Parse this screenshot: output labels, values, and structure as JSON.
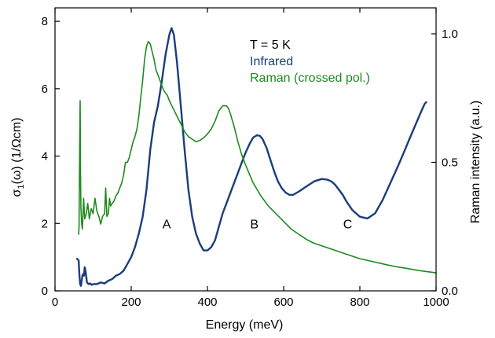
{
  "chart_data": {
    "type": "line",
    "title": "",
    "xlabel": "Energy (meV)",
    "ylabel_left_prefix": "σ",
    "ylabel_left_sub": "1",
    "ylabel_left_suffix": "(ω) (1/Ωcm)",
    "ylabel_right": "Raman intensity (a.u.)",
    "xlim": [
      0,
      1000
    ],
    "ylim_left": [
      0,
      8.4
    ],
    "ylim_right": [
      0,
      1.0
    ],
    "x_ticks": [
      0,
      200,
      400,
      600,
      800,
      1000
    ],
    "x_tick_labels": [
      "0",
      "200",
      "400",
      "600",
      "800",
      "1000"
    ],
    "y_left_ticks": [
      0,
      2,
      4,
      6,
      8
    ],
    "y_left_tick_labels": [
      "0",
      "2",
      "4",
      "6",
      "8"
    ],
    "y_right_ticks": [
      0,
      0.5,
      1.0
    ],
    "y_right_tick_labels": [
      "0.0",
      "0.5",
      "1.0"
    ],
    "grid": false,
    "legend": {
      "placement": "top-right",
      "header": "T = 5 K",
      "entries": [
        "Infrared",
        "Raman (crossed pol.)"
      ]
    },
    "annotations": [
      {
        "text": "A",
        "x": 293,
        "y": 2.0
      },
      {
        "text": "B",
        "x": 523,
        "y": 2.0
      },
      {
        "text": "C",
        "x": 768,
        "y": 2.0
      }
    ],
    "series": [
      {
        "name": "Infrared",
        "axis": "left",
        "color": "#1b3d7a",
        "x": [
          58,
          62,
          64,
          66,
          68,
          70,
          72,
          74,
          76,
          78,
          80,
          84,
          88,
          92,
          96,
          100,
          110,
          120,
          130,
          140,
          150,
          160,
          170,
          180,
          190,
          200,
          210,
          220,
          230,
          240,
          250,
          260,
          270,
          280,
          290,
          300,
          306,
          312,
          320,
          330,
          340,
          350,
          360,
          370,
          380,
          390,
          400,
          410,
          420,
          430,
          440,
          450,
          460,
          470,
          480,
          490,
          500,
          510,
          520,
          530,
          538,
          545,
          555,
          565,
          575,
          585,
          595,
          605,
          615,
          625,
          640,
          660,
          680,
          700,
          715,
          725,
          735,
          745,
          755,
          765,
          780,
          800,
          820,
          840,
          860,
          880,
          900,
          915,
          930,
          945,
          960,
          970,
          974
        ],
        "y": [
          0.95,
          0.9,
          0.5,
          0.2,
          0.15,
          0.3,
          0.45,
          0.5,
          0.45,
          0.7,
          0.6,
          0.25,
          0.2,
          0.22,
          0.18,
          0.2,
          0.2,
          0.25,
          0.22,
          0.3,
          0.35,
          0.45,
          0.5,
          0.6,
          0.8,
          1.0,
          1.3,
          1.7,
          2.2,
          3.0,
          4.2,
          5.0,
          5.5,
          6.2,
          7.0,
          7.6,
          7.8,
          7.6,
          6.8,
          5.5,
          4.2,
          3.0,
          2.2,
          1.7,
          1.4,
          1.2,
          1.2,
          1.3,
          1.5,
          1.9,
          2.3,
          2.6,
          2.9,
          3.2,
          3.5,
          3.8,
          4.1,
          4.35,
          4.55,
          4.62,
          4.6,
          4.5,
          4.25,
          3.9,
          3.55,
          3.25,
          3.05,
          2.92,
          2.85,
          2.85,
          2.95,
          3.1,
          3.25,
          3.32,
          3.3,
          3.25,
          3.15,
          3.0,
          2.85,
          2.65,
          2.4,
          2.2,
          2.15,
          2.3,
          2.7,
          3.2,
          3.7,
          4.1,
          4.5,
          4.9,
          5.3,
          5.55,
          5.6
        ]
      },
      {
        "name": "Raman (crossed pol.)",
        "axis": "right",
        "color": "#1f8a1f",
        "x": [
          62,
          63,
          64,
          65,
          66,
          67,
          68,
          70,
          72,
          75,
          78,
          82,
          86,
          90,
          95,
          100,
          105,
          110,
          115,
          120,
          125,
          130,
          133,
          136,
          140,
          143,
          146,
          150,
          155,
          160,
          165,
          170,
          175,
          180,
          185,
          190,
          195,
          200,
          205,
          210,
          215,
          220,
          225,
          230,
          235,
          240,
          245,
          250,
          255,
          260,
          265,
          270,
          275,
          280,
          285,
          290,
          295,
          300,
          310,
          320,
          330,
          340,
          350,
          360,
          370,
          380,
          390,
          400,
          410,
          420,
          430,
          440,
          450,
          455,
          460,
          470,
          480,
          490,
          500,
          520,
          540,
          560,
          580,
          600,
          620,
          640,
          660,
          680,
          700,
          720,
          740,
          760,
          780,
          800,
          830,
          860,
          890,
          920,
          950,
          980,
          1000
        ],
        "y": [
          0.22,
          0.25,
          0.4,
          0.6,
          0.74,
          0.45,
          0.32,
          0.26,
          0.24,
          0.36,
          0.28,
          0.3,
          0.34,
          0.28,
          0.32,
          0.3,
          0.36,
          0.31,
          0.29,
          0.26,
          0.29,
          0.3,
          0.4,
          0.29,
          0.3,
          0.36,
          0.33,
          0.34,
          0.35,
          0.37,
          0.38,
          0.4,
          0.42,
          0.45,
          0.5,
          0.5,
          0.52,
          0.55,
          0.58,
          0.6,
          0.63,
          0.68,
          0.75,
          0.82,
          0.9,
          0.95,
          0.97,
          0.96,
          0.93,
          0.9,
          0.86,
          0.84,
          0.82,
          0.8,
          0.78,
          0.77,
          0.76,
          0.74,
          0.71,
          0.68,
          0.65,
          0.62,
          0.6,
          0.59,
          0.58,
          0.585,
          0.595,
          0.61,
          0.63,
          0.66,
          0.7,
          0.72,
          0.72,
          0.71,
          0.69,
          0.64,
          0.58,
          0.53,
          0.49,
          0.42,
          0.37,
          0.33,
          0.3,
          0.27,
          0.24,
          0.22,
          0.2,
          0.185,
          0.175,
          0.165,
          0.155,
          0.145,
          0.135,
          0.125,
          0.115,
          0.105,
          0.095,
          0.088,
          0.08,
          0.074,
          0.07
        ]
      }
    ]
  }
}
